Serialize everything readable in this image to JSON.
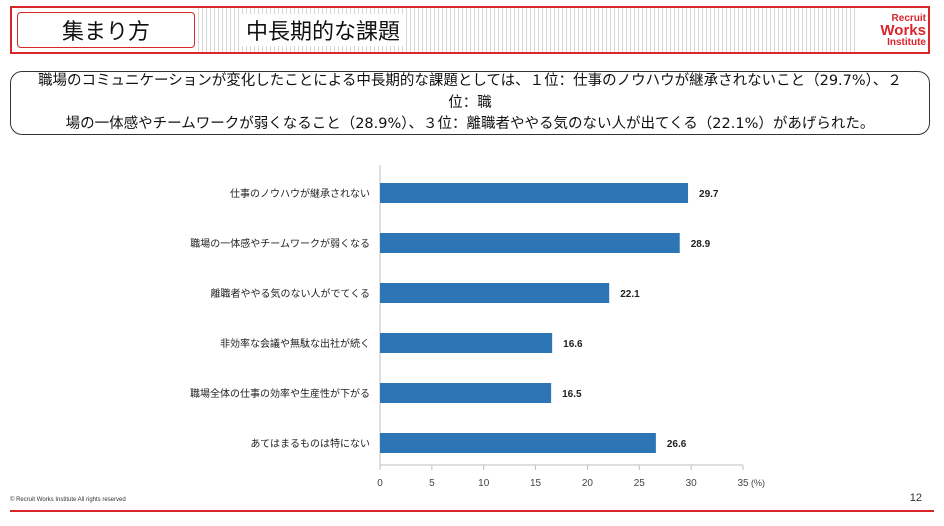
{
  "header": {
    "section_label": "集まり方",
    "title": "中長期的な課題",
    "logo": {
      "line1": "Recruit",
      "line2": "Works",
      "line3": "Institute"
    }
  },
  "summary": {
    "line1": "職場のコミュニケーションが変化したことによる中長期的な課題としては、１位：仕事のノウハウが継承されないこと（29.7%）、２位：職",
    "line2": "場の一体感やチームワークが弱くなること（28.9%）、３位：離職者ややる気のない人が出てくる（22.1%）があげられた。"
  },
  "chart_data": {
    "type": "bar",
    "orientation": "horizontal",
    "categories": [
      "仕事のノウハウが継承されない",
      "職場の一体感やチームワークが弱くなる",
      "離職者ややる気のない人がでてくる",
      "非効率な会議や無駄な出社が続く",
      "職場全体の仕事の効率や生産性が下がる",
      "あてはまるものは特にない"
    ],
    "values": [
      29.7,
      28.9,
      22.1,
      16.6,
      16.5,
      26.6
    ],
    "value_labels": [
      "29.7",
      "28.9",
      "22.1",
      "16.6",
      "16.5",
      "26.6"
    ],
    "xlim": [
      0,
      35
    ],
    "xticks": [
      "0",
      "5",
      "10",
      "15",
      "20",
      "25",
      "30",
      "35"
    ],
    "xunit": "(%)",
    "bar_color": "#2e75b6",
    "title": "",
    "xlabel": "",
    "ylabel": ""
  },
  "footer": {
    "copyright": "© Recruit Works Institute All rights reserved",
    "page_number": "12"
  }
}
